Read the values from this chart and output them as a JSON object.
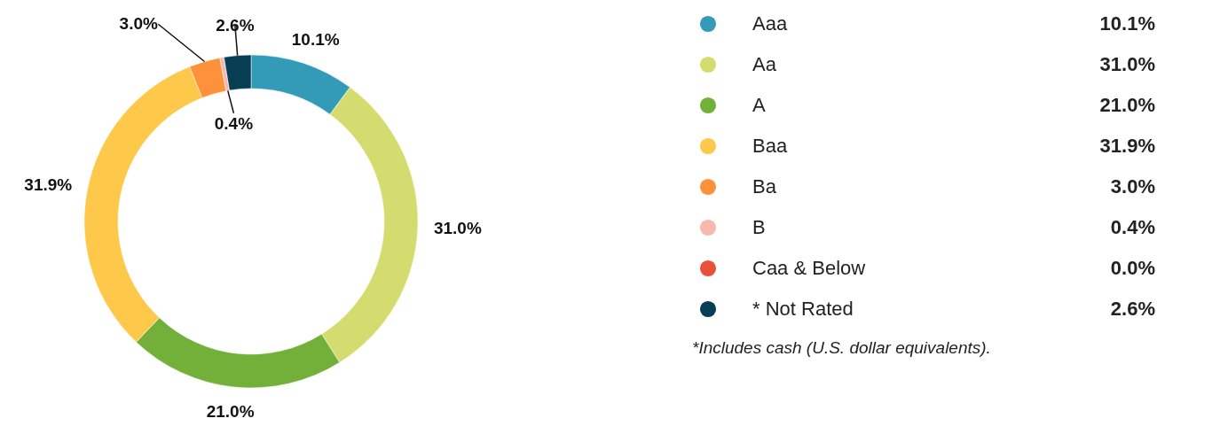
{
  "chart_data": {
    "type": "donut",
    "categories": [
      "Aaa",
      "Aa",
      "A",
      "Baa",
      "Ba",
      "B",
      "Caa & Below",
      "* Not Rated"
    ],
    "values": [
      10.1,
      31.0,
      21.0,
      31.9,
      3.0,
      0.4,
      0.0,
      2.6
    ],
    "value_labels": [
      "10.1%",
      "31.0%",
      "21.0%",
      "31.9%",
      "3.0%",
      "0.4%",
      "0.0%",
      "2.6%"
    ],
    "colors": [
      "#339bb8",
      "#d4dc6f",
      "#72b03a",
      "#fec84a",
      "#fd923a",
      "#f9b8ad",
      "#e8503a",
      "#073e53"
    ],
    "legend": "right",
    "annotations": [
      "*Includes cash (U.S. dollar equivalents)."
    ]
  }
}
